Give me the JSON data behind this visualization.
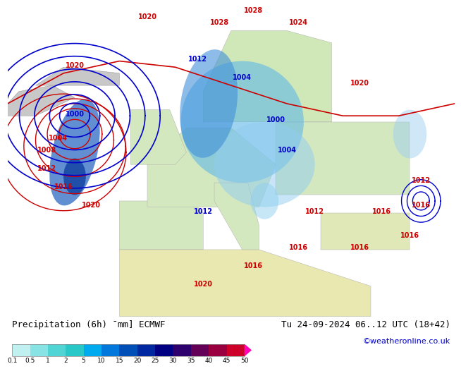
{
  "title_left": "Precipitation (6h) ¯mm] ECMWF",
  "title_right": "Tu 24-09-2024 06..12 UTC (18+42)",
  "credit": "©weatheronline.co.uk",
  "colorbar_levels": [
    0.1,
    0.5,
    1,
    2,
    5,
    10,
    15,
    20,
    25,
    30,
    35,
    40,
    45,
    50
  ],
  "cb_colors": [
    "#c0f0f0",
    "#88e4e4",
    "#50d4d4",
    "#28c8c8",
    "#00aaee",
    "#0078dc",
    "#0050b8",
    "#0028a0",
    "#000082",
    "#2d006e",
    "#640058",
    "#9a0040",
    "#cc0028",
    "#ff00b4"
  ],
  "ocean_color": "#cce8ee",
  "figure_bg": "#ffffff",
  "slp_color": "#cc0000",
  "z500_color": "#0000cc"
}
